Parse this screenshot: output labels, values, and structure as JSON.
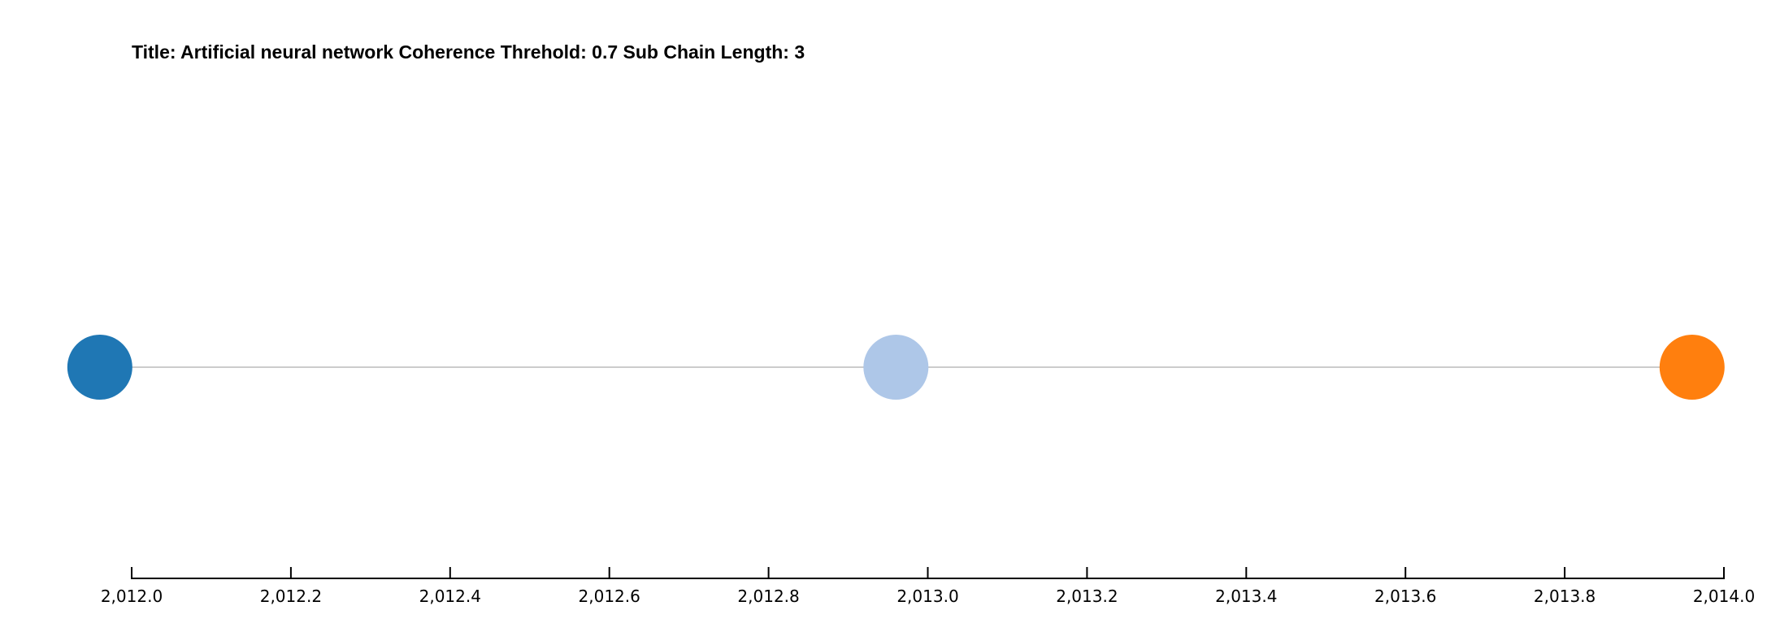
{
  "chart_data": {
    "type": "scatter",
    "title": "Title: Artificial neural network Coherence Threhold: 0.7 Sub Chain Length: 3",
    "xlabel": "",
    "ylabel": "",
    "xlim": [
      2012.0,
      2014.0
    ],
    "x_ticks": [
      2012.0,
      2012.2,
      2012.4,
      2012.6,
      2012.8,
      2013.0,
      2013.2,
      2013.4,
      2013.6,
      2013.8,
      2014.0
    ],
    "tick_labels": [
      "2,012.0",
      "2,012.2",
      "2,012.4",
      "2,012.6",
      "2,012.8",
      "2,013.0",
      "2,013.2",
      "2,013.4",
      "2,013.6",
      "2,013.8",
      "2,014.0"
    ],
    "grid": false,
    "legend": "none",
    "connected": true,
    "line_color": "#cccccc",
    "points": [
      {
        "x": 2011.96,
        "color": "#1f77b4"
      },
      {
        "x": 2012.96,
        "color": "#aec7e8"
      },
      {
        "x": 2013.96,
        "color": "#ff7f0e"
      }
    ]
  }
}
